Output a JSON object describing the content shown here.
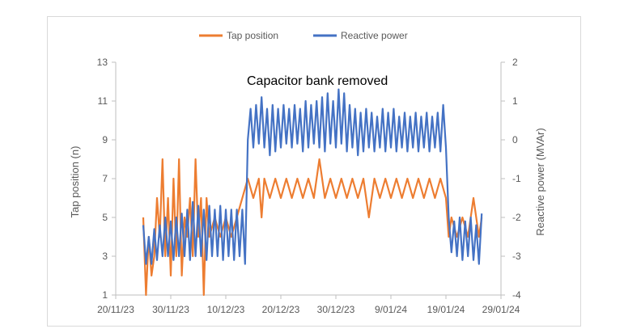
{
  "chart_data": {
    "type": "line",
    "title": "",
    "annotation": "Capacitor bank removed",
    "xlabel": "",
    "ylabel": "Tap position (n)",
    "y2label": "Reactive power (MVAr)",
    "x_ticks": [
      "20/11/23",
      "30/11/23",
      "10/12/23",
      "20/12/23",
      "30/12/23",
      "9/01/24",
      "19/01/24",
      "29/01/24"
    ],
    "xlim": [
      "2023-11-20",
      "2024-01-29"
    ],
    "ylim": [
      1,
      13
    ],
    "y_ticks": [
      1,
      3,
      5,
      7,
      9,
      11,
      13
    ],
    "y2lim": [
      -4,
      2
    ],
    "y2_ticks": [
      -4,
      -3,
      -2,
      -1,
      0,
      1,
      2
    ],
    "grid": false,
    "legend_position": "top",
    "colors": {
      "tap": "#ED7D31",
      "reactive": "#4472C4",
      "axis": "#bfbfbf"
    },
    "series": [
      {
        "name": "Tap position",
        "axis": "left",
        "points": [
          [
            "2023-11-25",
            5
          ],
          [
            "2023-11-25.5",
            1
          ],
          [
            "2023-11-26",
            4
          ],
          [
            "2023-11-26.5",
            2
          ],
          [
            "2023-11-27",
            3
          ],
          [
            "2023-11-27.5",
            6
          ],
          [
            "2023-11-28",
            4
          ],
          [
            "2023-11-28.5",
            8
          ],
          [
            "2023-11-29",
            3
          ],
          [
            "2023-11-29.5",
            6
          ],
          [
            "2023-11-30",
            2
          ],
          [
            "2023-11-30.5",
            7
          ],
          [
            "2023-12-01",
            3
          ],
          [
            "2023-12-01.5",
            8
          ],
          [
            "2023-12-02",
            2
          ],
          [
            "2023-12-02.5",
            5
          ],
          [
            "2023-12-03",
            4
          ],
          [
            "2023-12-03.5",
            6
          ],
          [
            "2023-12-04",
            3
          ],
          [
            "2023-12-04.5",
            8
          ],
          [
            "2023-12-05",
            4
          ],
          [
            "2023-12-05.5",
            6
          ],
          [
            "2023-12-06",
            1
          ],
          [
            "2023-12-06.5",
            6
          ],
          [
            "2023-12-07",
            4
          ],
          [
            "2023-12-08",
            5
          ],
          [
            "2023-12-09",
            4
          ],
          [
            "2023-12-10",
            5
          ],
          [
            "2023-12-11",
            4
          ],
          [
            "2023-12-12",
            5
          ],
          [
            "2023-12-13",
            6
          ],
          [
            "2023-12-14",
            7
          ],
          [
            "2023-12-15",
            6
          ],
          [
            "2023-12-16",
            7
          ],
          [
            "2023-12-16.5",
            5
          ],
          [
            "2023-12-17",
            7
          ],
          [
            "2023-12-18",
            6
          ],
          [
            "2023-12-19",
            7
          ],
          [
            "2023-12-20",
            6
          ],
          [
            "2023-12-21",
            7
          ],
          [
            "2023-12-22",
            6
          ],
          [
            "2023-12-23",
            7
          ],
          [
            "2023-12-24",
            6
          ],
          [
            "2023-12-25",
            7
          ],
          [
            "2023-12-26",
            6
          ],
          [
            "2023-12-27",
            8
          ],
          [
            "2023-12-28",
            6
          ],
          [
            "2023-12-29",
            7
          ],
          [
            "2023-12-30",
            6
          ],
          [
            "2023-12-31",
            7
          ],
          [
            "2024-01-01",
            6
          ],
          [
            "2024-01-02",
            7
          ],
          [
            "2024-01-03",
            6
          ],
          [
            "2024-01-04",
            7
          ],
          [
            "2024-01-05",
            5
          ],
          [
            "2024-01-06",
            7
          ],
          [
            "2024-01-07",
            6
          ],
          [
            "2024-01-08",
            7
          ],
          [
            "2024-01-09",
            6
          ],
          [
            "2024-01-10",
            7
          ],
          [
            "2024-01-11",
            6
          ],
          [
            "2024-01-12",
            7
          ],
          [
            "2024-01-13",
            6
          ],
          [
            "2024-01-14",
            7
          ],
          [
            "2024-01-15",
            6
          ],
          [
            "2024-01-16",
            7
          ],
          [
            "2024-01-17",
            6
          ],
          [
            "2024-01-18",
            7
          ],
          [
            "2024-01-19",
            6
          ],
          [
            "2024-01-19.5",
            4
          ],
          [
            "2024-01-20",
            5
          ],
          [
            "2024-01-21",
            4
          ],
          [
            "2024-01-22",
            5
          ],
          [
            "2024-01-23",
            4
          ],
          [
            "2024-01-24",
            6
          ],
          [
            "2024-01-25",
            4
          ],
          [
            "2024-01-25.5",
            5
          ]
        ]
      },
      {
        "name": "Reactive power",
        "axis": "right",
        "points": [
          [
            "2023-11-25",
            -2.2
          ],
          [
            "2023-11-25.5",
            -3.2
          ],
          [
            "2023-11-26",
            -2.5
          ],
          [
            "2023-11-26.5",
            -3.2
          ],
          [
            "2023-11-27",
            -2.3
          ],
          [
            "2023-11-27.5",
            -3.1
          ],
          [
            "2023-11-28",
            -2.2
          ],
          [
            "2023-11-28.5",
            -3.0
          ],
          [
            "2023-11-29",
            -2.0
          ],
          [
            "2023-11-29.5",
            -3.0
          ],
          [
            "2023-11-30",
            -2.1
          ],
          [
            "2023-11-30.5",
            -3.1
          ],
          [
            "2023-12-01",
            -2.0
          ],
          [
            "2023-12-01.5",
            -3.0
          ],
          [
            "2023-12-02",
            -1.9
          ],
          [
            "2023-12-02.5",
            -3.0
          ],
          [
            "2023-12-03",
            -1.8
          ],
          [
            "2023-12-03.5",
            -3.1
          ],
          [
            "2023-12-04",
            -1.6
          ],
          [
            "2023-12-04.5",
            -3.0
          ],
          [
            "2023-12-05",
            -1.7
          ],
          [
            "2023-12-05.5",
            -3.0
          ],
          [
            "2023-12-06",
            -1.8
          ],
          [
            "2023-12-06.5",
            -3.1
          ],
          [
            "2023-12-07",
            -1.7
          ],
          [
            "2023-12-07.5",
            -3.0
          ],
          [
            "2023-12-08",
            -1.8
          ],
          [
            "2023-12-08.5",
            -3.0
          ],
          [
            "2023-12-09",
            -1.7
          ],
          [
            "2023-12-09.5",
            -3.1
          ],
          [
            "2023-12-10",
            -1.8
          ],
          [
            "2023-12-10.5",
            -3.0
          ],
          [
            "2023-12-11",
            -1.8
          ],
          [
            "2023-12-11.5",
            -3.1
          ],
          [
            "2023-12-12",
            -1.8
          ],
          [
            "2023-12-12.5",
            -3.0
          ],
          [
            "2023-12-13",
            -1.8
          ],
          [
            "2023-12-13.5",
            -3.2
          ],
          [
            "2023-12-14",
            0.0
          ],
          [
            "2023-12-14.5",
            0.8
          ],
          [
            "2023-12-15",
            -0.2
          ],
          [
            "2023-12-15.5",
            0.9
          ],
          [
            "2023-12-16",
            -0.1
          ],
          [
            "2023-12-16.5",
            1.1
          ],
          [
            "2023-12-17",
            -0.2
          ],
          [
            "2023-12-17.5",
            0.8
          ],
          [
            "2023-12-18",
            -0.4
          ],
          [
            "2023-12-18.5",
            0.9
          ],
          [
            "2023-12-19",
            -0.3
          ],
          [
            "2023-12-19.5",
            0.8
          ],
          [
            "2023-12-20",
            -0.2
          ],
          [
            "2023-12-20.5",
            0.9
          ],
          [
            "2023-12-21",
            -0.1
          ],
          [
            "2023-12-21.5",
            0.8
          ],
          [
            "2023-12-22",
            -0.2
          ],
          [
            "2023-12-22.5",
            0.9
          ],
          [
            "2023-12-23",
            -0.1
          ],
          [
            "2023-12-23.5",
            0.8
          ],
          [
            "2023-12-24",
            -0.3
          ],
          [
            "2023-12-24.5",
            1.0
          ],
          [
            "2023-12-25",
            -0.2
          ],
          [
            "2023-12-25.5",
            0.9
          ],
          [
            "2023-12-26",
            -0.1
          ],
          [
            "2023-12-26.5",
            1.0
          ],
          [
            "2023-12-27",
            -0.2
          ],
          [
            "2023-12-27.5",
            1.1
          ],
          [
            "2023-12-28",
            -0.3
          ],
          [
            "2023-12-28.5",
            1.2
          ],
          [
            "2023-12-29",
            -0.1
          ],
          [
            "2023-12-29.5",
            1.0
          ],
          [
            "2023-12-30",
            -0.2
          ],
          [
            "2023-12-30.5",
            1.3
          ],
          [
            "2023-12-31",
            -0.1
          ],
          [
            "2023-12-31.5",
            1.2
          ],
          [
            "2024-01-01",
            -0.3
          ],
          [
            "2024-01-01.5",
            0.9
          ],
          [
            "2024-01-02",
            -0.2
          ],
          [
            "2024-01-02.5",
            0.8
          ],
          [
            "2024-01-03",
            -0.4
          ],
          [
            "2024-01-03.5",
            0.7
          ],
          [
            "2024-01-04",
            -0.3
          ],
          [
            "2024-01-04.5",
            0.8
          ],
          [
            "2024-01-05",
            -0.2
          ],
          [
            "2024-01-05.5",
            0.7
          ],
          [
            "2024-01-06",
            -0.3
          ],
          [
            "2024-01-06.5",
            0.6
          ],
          [
            "2024-01-07",
            -0.2
          ],
          [
            "2024-01-07.5",
            0.8
          ],
          [
            "2024-01-08",
            -0.3
          ],
          [
            "2024-01-08.5",
            0.7
          ],
          [
            "2024-01-09",
            -0.2
          ],
          [
            "2024-01-09.5",
            0.8
          ],
          [
            "2024-01-10",
            -0.3
          ],
          [
            "2024-01-10.5",
            0.6
          ],
          [
            "2024-01-11",
            -0.2
          ],
          [
            "2024-01-11.5",
            0.7
          ],
          [
            "2024-01-12",
            -0.3
          ],
          [
            "2024-01-12.5",
            0.6
          ],
          [
            "2024-01-13",
            -0.2
          ],
          [
            "2024-01-13.5",
            0.7
          ],
          [
            "2024-01-14",
            -0.3
          ],
          [
            "2024-01-14.5",
            0.6
          ],
          [
            "2024-01-15",
            -0.2
          ],
          [
            "2024-01-15.5",
            0.7
          ],
          [
            "2024-01-16",
            -0.3
          ],
          [
            "2024-01-16.5",
            0.6
          ],
          [
            "2024-01-17",
            -0.2
          ],
          [
            "2024-01-17.5",
            0.7
          ],
          [
            "2024-01-18",
            -0.3
          ],
          [
            "2024-01-18.5",
            0.9
          ],
          [
            "2024-01-19",
            -0.2
          ],
          [
            "2024-01-19.5",
            -2.0
          ],
          [
            "2024-01-20",
            -2.9
          ],
          [
            "2024-01-20.5",
            -2.1
          ],
          [
            "2024-01-21",
            -3.0
          ],
          [
            "2024-01-21.5",
            -2.0
          ],
          [
            "2024-01-22",
            -3.1
          ],
          [
            "2024-01-22.5",
            -2.1
          ],
          [
            "2024-01-23",
            -3.0
          ],
          [
            "2024-01-23.5",
            -2.0
          ],
          [
            "2024-01-24",
            -3.1
          ],
          [
            "2024-01-24.5",
            -2.2
          ],
          [
            "2024-01-25",
            -3.2
          ],
          [
            "2024-01-25.5",
            -1.9
          ]
        ]
      }
    ]
  }
}
